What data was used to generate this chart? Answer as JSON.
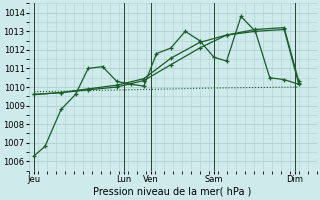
{
  "xlabel": "Pression niveau de la mer( hPa )",
  "background_color": "#ceeaea",
  "grid_color": "#aed0d0",
  "line_color": "#1a5c2a",
  "ylim": [
    1005.5,
    1014.5
  ],
  "yticks": [
    1006,
    1007,
    1008,
    1009,
    1010,
    1011,
    1012,
    1013,
    1014
  ],
  "xlim": [
    0,
    16
  ],
  "day_labels": [
    "Jeu",
    "Lun",
    "Ven",
    "Sam",
    "Dim"
  ],
  "day_x": [
    0.3,
    5.3,
    6.8,
    10.3,
    14.8
  ],
  "vline_x": [
    0.3,
    5.3,
    6.8,
    10.3,
    14.8
  ],
  "series1_x": [
    0.3,
    0.9,
    1.8,
    2.6,
    3.3,
    4.1,
    4.9,
    5.7,
    6.4,
    7.1,
    7.9,
    8.7,
    9.5,
    10.3,
    11.0,
    11.8,
    12.6,
    13.4,
    14.2,
    15.0
  ],
  "series1_y": [
    1006.3,
    1006.8,
    1008.8,
    1009.6,
    1011.0,
    1011.1,
    1010.3,
    1010.15,
    1010.05,
    1011.8,
    1012.1,
    1013.0,
    1012.5,
    1011.6,
    1011.4,
    1013.8,
    1013.0,
    1010.5,
    1010.4,
    1010.15
  ],
  "series2_x": [
    0.3,
    1.8,
    3.3,
    4.9,
    6.4,
    7.9,
    9.5,
    11.0,
    12.6,
    14.2,
    15.0
  ],
  "series2_y": [
    1009.6,
    1009.7,
    1009.85,
    1010.0,
    1010.35,
    1011.2,
    1012.1,
    1012.8,
    1013.0,
    1013.1,
    1010.2
  ],
  "series3_x": [
    0.3,
    1.8,
    3.3,
    4.9,
    6.4,
    7.9,
    9.5,
    11.0,
    12.6,
    14.2,
    15.0
  ],
  "series3_y": [
    1009.6,
    1009.7,
    1009.9,
    1010.1,
    1010.45,
    1011.55,
    1012.4,
    1012.8,
    1013.1,
    1013.2,
    1010.35
  ],
  "flat_line_x": [
    0.3,
    5.5,
    10.5,
    15.0
  ],
  "flat_line_y": [
    1009.75,
    1009.85,
    1009.95,
    1010.0
  ]
}
